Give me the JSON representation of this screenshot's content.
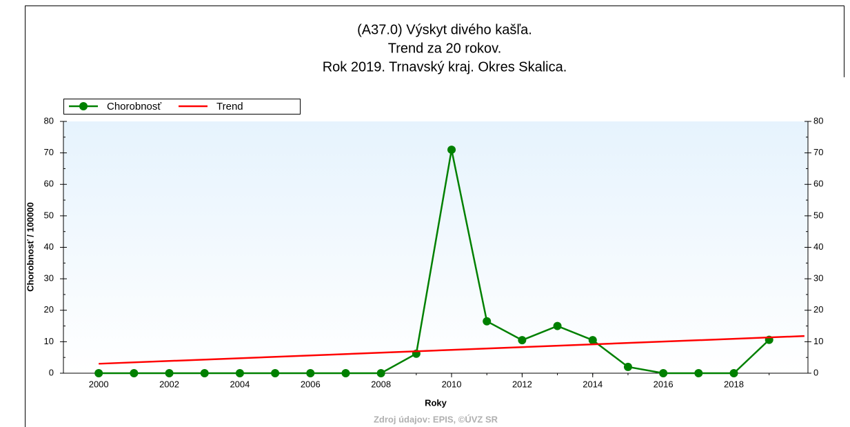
{
  "chart_data": {
    "type": "line",
    "title": [
      "(A37.0) Výskyt divého kašľa.",
      "Trend za 20 rokov.",
      "Rok 2019. Trnavský kraj. Okres Skalica."
    ],
    "x_label": "Roky",
    "y_label": "Chorobnosť / 100000",
    "source": "Zdroj údajov: EPIS, ©ÚVZ SR",
    "x": [
      2000,
      2001,
      2002,
      2003,
      2004,
      2005,
      2006,
      2007,
      2008,
      2009,
      2010,
      2011,
      2012,
      2013,
      2014,
      2015,
      2016,
      2017,
      2018,
      2019
    ],
    "series": [
      {
        "name": "Chorobnosť",
        "color": "#008000",
        "values": [
          0,
          0,
          0,
          0,
          0,
          0,
          0,
          0,
          0,
          6.2,
          71,
          16.5,
          10.5,
          15,
          10.5,
          2,
          0,
          0,
          0,
          10.6
        ]
      },
      {
        "name": "Trend",
        "color": "#ff0000",
        "x": [
          2000,
          2020
        ],
        "values": [
          3,
          11.8
        ]
      }
    ],
    "xlim": [
      1999,
      2020.1
    ],
    "xticks": [
      2000,
      2002,
      2004,
      2006,
      2008,
      2010,
      2012,
      2014,
      2016,
      2018
    ],
    "ylim": [
      0,
      80
    ],
    "yticks": [
      0,
      10,
      20,
      30,
      40,
      50,
      60,
      70,
      80
    ],
    "y2lim": [
      0,
      80
    ],
    "y2ticks": [
      0,
      10,
      20,
      30,
      40,
      50,
      60,
      70,
      80
    ],
    "legend": "top-left"
  }
}
